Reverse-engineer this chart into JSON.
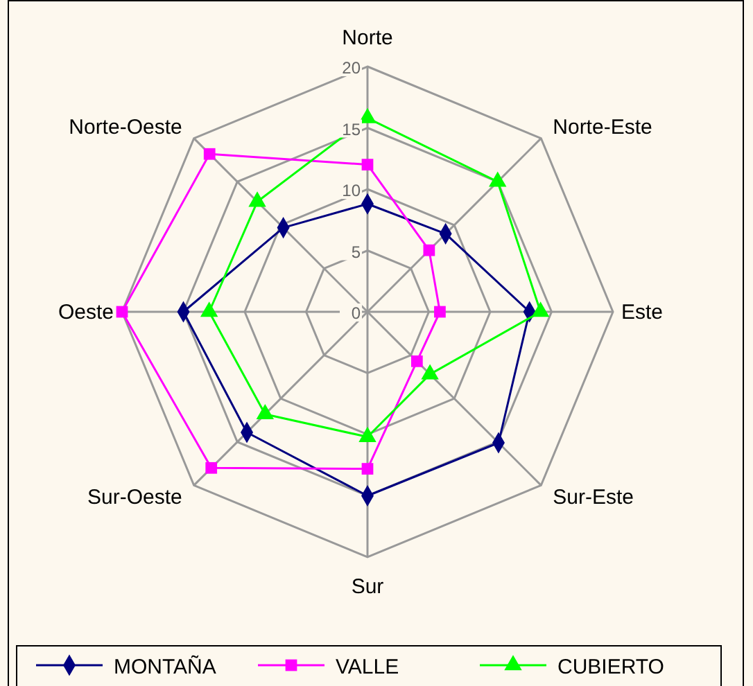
{
  "chart_data": {
    "type": "radar",
    "categories": [
      "Norte",
      "Norte-Este",
      "Este",
      "Sur-Este",
      "Sur",
      "Sur-Oeste",
      "Oeste",
      "Norte-Oeste"
    ],
    "ylim": [
      0,
      20
    ],
    "yticks": [
      0,
      5,
      10,
      15,
      20
    ],
    "grid": true,
    "legend": "bottom",
    "line_style": "solid",
    "series": [
      {
        "name": "MONTAÑA",
        "color": "#000080",
        "marker": "diamond",
        "values": [
          8.8,
          9,
          13.2,
          15.1,
          15,
          13.9,
          15,
          9.7
        ]
      },
      {
        "name": "VALLE",
        "color": "#ff00ff",
        "marker": "square",
        "values": [
          12,
          7.1,
          5.9,
          5.7,
          12.8,
          18,
          20,
          18.2
        ]
      },
      {
        "name": "CUBIERTO",
        "color": "#00ff00",
        "marker": "triangle",
        "values": [
          15.8,
          15,
          14.1,
          7.2,
          10.2,
          11.8,
          12.9,
          12.7
        ]
      }
    ]
  }
}
